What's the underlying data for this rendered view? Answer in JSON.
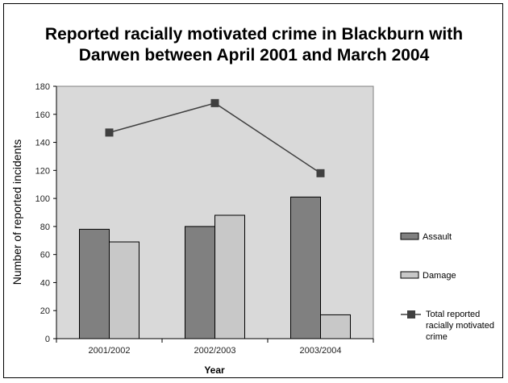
{
  "chart_data": {
    "type": "bar",
    "title_lines": [
      "Reported racially motivated crime in Blackburn with",
      "Darwen between April 2001 and March 2004"
    ],
    "xlabel": "Year",
    "ylabel": "Number of reported incidents",
    "categories": [
      "2001/2002",
      "2002/2003",
      "2003/2004"
    ],
    "ylim": [
      0,
      180
    ],
    "yticks": [
      "0",
      "20",
      "40",
      "60",
      "80",
      "100",
      "120",
      "140",
      "160",
      "180"
    ],
    "grid": false,
    "legend_position": "right",
    "series": [
      {
        "name": "Assault",
        "type": "bar",
        "color": "#808080",
        "values": [
          78,
          80,
          101
        ]
      },
      {
        "name": "Damage",
        "type": "bar",
        "color": "#c8c8c8",
        "values": [
          69,
          88,
          17
        ]
      },
      {
        "name": "Total reported racially motivated crime",
        "type": "line-marker",
        "color": "#404040",
        "legend_lines": [
          "Total reported",
          "racially motivated",
          "crime"
        ],
        "values": [
          147,
          168,
          118
        ]
      }
    ],
    "plot_background": "#d9d9d9"
  }
}
